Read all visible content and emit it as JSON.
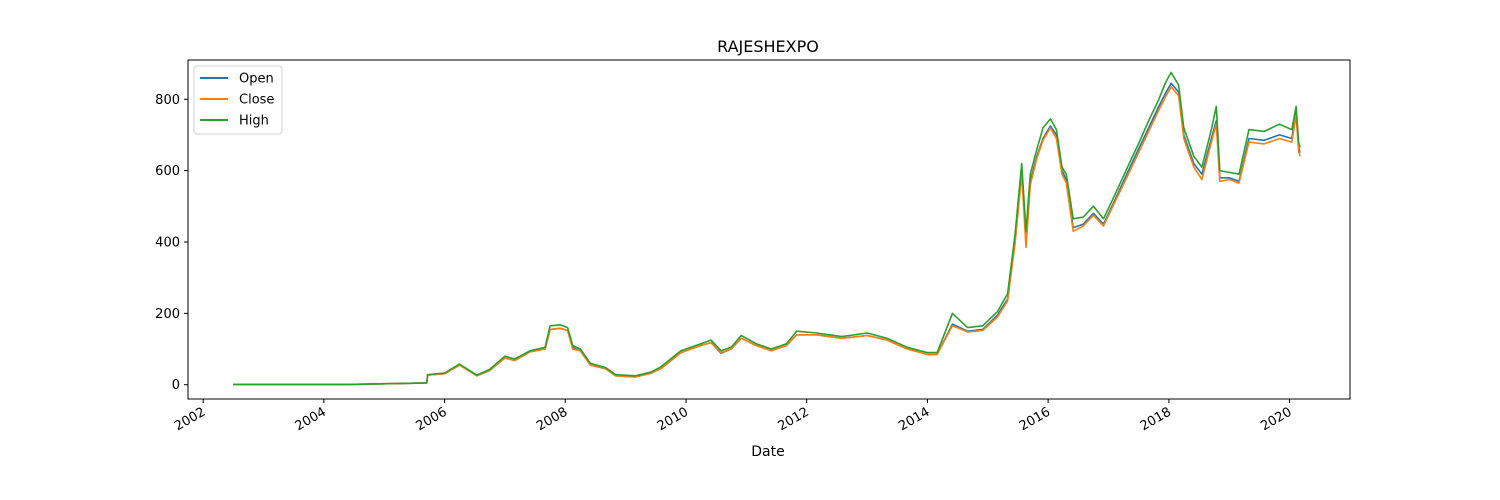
{
  "chart_data": {
    "type": "line",
    "title": "RAJESHEXPO",
    "xlabel": "Date",
    "ylabel": "",
    "x_axis_type": "date",
    "xlim": [
      "2001-10-01",
      "2021-01-01"
    ],
    "ylim": [
      -40,
      910
    ],
    "x_ticks": [
      "2002",
      "2004",
      "2006",
      "2008",
      "2010",
      "2012",
      "2014",
      "2016",
      "2018",
      "2020"
    ],
    "y_ticks": [
      0,
      200,
      400,
      600,
      800
    ],
    "grid": false,
    "legend_position": "top-left",
    "series": [
      {
        "name": "Open",
        "color": "#1f77b4",
        "points": [
          [
            "2002-07-01",
            1
          ],
          [
            "2003-06-01",
            1
          ],
          [
            "2004-06-01",
            1
          ],
          [
            "2005-06-01",
            4
          ],
          [
            "2005-09-15",
            5
          ],
          [
            "2005-09-20",
            27
          ],
          [
            "2006-01-01",
            31
          ],
          [
            "2006-04-01",
            55
          ],
          [
            "2006-06-01",
            38
          ],
          [
            "2006-07-15",
            25
          ],
          [
            "2006-10-01",
            40
          ],
          [
            "2007-01-01",
            75
          ],
          [
            "2007-03-01",
            68
          ],
          [
            "2007-06-01",
            92
          ],
          [
            "2007-09-01",
            100
          ],
          [
            "2007-10-01",
            155
          ],
          [
            "2007-12-01",
            158
          ],
          [
            "2008-01-15",
            152
          ],
          [
            "2008-02-15",
            105
          ],
          [
            "2008-04-01",
            95
          ],
          [
            "2008-06-01",
            55
          ],
          [
            "2008-09-01",
            45
          ],
          [
            "2008-11-01",
            25
          ],
          [
            "2009-03-01",
            22
          ],
          [
            "2009-06-01",
            32
          ],
          [
            "2009-08-01",
            45
          ],
          [
            "2009-12-01",
            90
          ],
          [
            "2010-04-01",
            110
          ],
          [
            "2010-06-01",
            118
          ],
          [
            "2010-08-01",
            88
          ],
          [
            "2010-10-01",
            100
          ],
          [
            "2010-12-01",
            130
          ],
          [
            "2011-03-01",
            110
          ],
          [
            "2011-06-01",
            95
          ],
          [
            "2011-09-01",
            110
          ],
          [
            "2011-11-01",
            140
          ],
          [
            "2012-03-01",
            140
          ],
          [
            "2012-08-01",
            130
          ],
          [
            "2013-01-01",
            138
          ],
          [
            "2013-05-01",
            125
          ],
          [
            "2013-09-01",
            100
          ],
          [
            "2014-01-01",
            85
          ],
          [
            "2014-03-01",
            85
          ],
          [
            "2014-06-01",
            170
          ],
          [
            "2014-09-01",
            150
          ],
          [
            "2014-12-01",
            155
          ],
          [
            "2015-03-01",
            195
          ],
          [
            "2015-05-01",
            240
          ],
          [
            "2015-06-15",
            400
          ],
          [
            "2015-07-25",
            600
          ],
          [
            "2015-08-20",
            420
          ],
          [
            "2015-09-15",
            570
          ],
          [
            "2015-10-25",
            640
          ],
          [
            "2015-12-01",
            690
          ],
          [
            "2016-01-15",
            725
          ],
          [
            "2016-02-20",
            700
          ],
          [
            "2016-03-25",
            600
          ],
          [
            "2016-04-20",
            575
          ],
          [
            "2016-06-01",
            440
          ],
          [
            "2016-08-01",
            450
          ],
          [
            "2016-10-01",
            480
          ],
          [
            "2016-12-01",
            450
          ],
          [
            "2017-02-01",
            510
          ],
          [
            "2017-05-01",
            600
          ],
          [
            "2017-07-01",
            660
          ],
          [
            "2017-09-01",
            720
          ],
          [
            "2017-11-01",
            780
          ],
          [
            "2017-12-15",
            820
          ],
          [
            "2018-01-15",
            845
          ],
          [
            "2018-03-01",
            820
          ],
          [
            "2018-04-01",
            700
          ],
          [
            "2018-06-01",
            620
          ],
          [
            "2018-07-20",
            590
          ],
          [
            "2018-09-15",
            690
          ],
          [
            "2018-10-15",
            740
          ],
          [
            "2018-11-05",
            580
          ],
          [
            "2019-01-01",
            580
          ],
          [
            "2019-03-01",
            570
          ],
          [
            "2019-05-01",
            690
          ],
          [
            "2019-08-01",
            685
          ],
          [
            "2019-11-01",
            700
          ],
          [
            "2020-01-15",
            690
          ],
          [
            "2020-02-10",
            770
          ],
          [
            "2020-02-25",
            665
          ],
          [
            "2020-03-05",
            650
          ]
        ]
      },
      {
        "name": "Close",
        "color": "#ff7f0e",
        "points": [
          [
            "2002-07-01",
            1
          ],
          [
            "2003-06-01",
            1
          ],
          [
            "2004-06-01",
            1
          ],
          [
            "2005-06-01",
            4
          ],
          [
            "2005-09-15",
            5
          ],
          [
            "2005-09-20",
            27
          ],
          [
            "2006-01-01",
            31
          ],
          [
            "2006-04-01",
            55
          ],
          [
            "2006-06-01",
            38
          ],
          [
            "2006-07-15",
            25
          ],
          [
            "2006-10-01",
            40
          ],
          [
            "2007-01-01",
            75
          ],
          [
            "2007-03-01",
            68
          ],
          [
            "2007-06-01",
            92
          ],
          [
            "2007-09-01",
            100
          ],
          [
            "2007-10-01",
            155
          ],
          [
            "2007-12-01",
            158
          ],
          [
            "2008-01-15",
            152
          ],
          [
            "2008-02-15",
            100
          ],
          [
            "2008-04-01",
            95
          ],
          [
            "2008-06-01",
            55
          ],
          [
            "2008-09-01",
            45
          ],
          [
            "2008-11-01",
            25
          ],
          [
            "2009-03-01",
            22
          ],
          [
            "2009-06-01",
            32
          ],
          [
            "2009-08-01",
            45
          ],
          [
            "2009-12-01",
            90
          ],
          [
            "2010-04-01",
            110
          ],
          [
            "2010-06-01",
            118
          ],
          [
            "2010-08-01",
            90
          ],
          [
            "2010-10-01",
            100
          ],
          [
            "2010-12-01",
            130
          ],
          [
            "2011-03-01",
            110
          ],
          [
            "2011-06-01",
            95
          ],
          [
            "2011-09-01",
            110
          ],
          [
            "2011-11-01",
            140
          ],
          [
            "2012-03-01",
            140
          ],
          [
            "2012-08-01",
            130
          ],
          [
            "2013-01-01",
            138
          ],
          [
            "2013-05-01",
            125
          ],
          [
            "2013-09-01",
            100
          ],
          [
            "2014-01-01",
            85
          ],
          [
            "2014-03-01",
            85
          ],
          [
            "2014-06-01",
            165
          ],
          [
            "2014-09-01",
            148
          ],
          [
            "2014-12-01",
            152
          ],
          [
            "2015-03-01",
            190
          ],
          [
            "2015-05-01",
            235
          ],
          [
            "2015-06-15",
            395
          ],
          [
            "2015-07-25",
            590
          ],
          [
            "2015-08-20",
            385
          ],
          [
            "2015-09-15",
            560
          ],
          [
            "2015-10-25",
            635
          ],
          [
            "2015-12-01",
            685
          ],
          [
            "2016-01-15",
            720
          ],
          [
            "2016-02-20",
            690
          ],
          [
            "2016-03-25",
            590
          ],
          [
            "2016-04-20",
            565
          ],
          [
            "2016-06-01",
            430
          ],
          [
            "2016-08-01",
            445
          ],
          [
            "2016-10-01",
            475
          ],
          [
            "2016-12-01",
            445
          ],
          [
            "2017-02-01",
            505
          ],
          [
            "2017-05-01",
            590
          ],
          [
            "2017-07-01",
            650
          ],
          [
            "2017-09-01",
            710
          ],
          [
            "2017-11-01",
            770
          ],
          [
            "2017-12-15",
            810
          ],
          [
            "2018-01-15",
            835
          ],
          [
            "2018-03-01",
            810
          ],
          [
            "2018-04-01",
            690
          ],
          [
            "2018-06-01",
            610
          ],
          [
            "2018-07-20",
            575
          ],
          [
            "2018-09-15",
            680
          ],
          [
            "2018-10-15",
            730
          ],
          [
            "2018-11-05",
            570
          ],
          [
            "2019-01-01",
            575
          ],
          [
            "2019-03-01",
            565
          ],
          [
            "2019-05-01",
            680
          ],
          [
            "2019-08-01",
            675
          ],
          [
            "2019-11-01",
            690
          ],
          [
            "2020-01-15",
            680
          ],
          [
            "2020-02-10",
            755
          ],
          [
            "2020-02-25",
            655
          ],
          [
            "2020-03-05",
            640
          ]
        ]
      },
      {
        "name": "High",
        "color": "#2ca02c",
        "points": [
          [
            "2002-07-01",
            1
          ],
          [
            "2003-06-01",
            1
          ],
          [
            "2004-06-01",
            1
          ],
          [
            "2005-06-01",
            4
          ],
          [
            "2005-09-15",
            5
          ],
          [
            "2005-09-20",
            28
          ],
          [
            "2006-01-01",
            33
          ],
          [
            "2006-04-01",
            58
          ],
          [
            "2006-06-01",
            40
          ],
          [
            "2006-07-15",
            27
          ],
          [
            "2006-10-01",
            43
          ],
          [
            "2007-01-01",
            80
          ],
          [
            "2007-03-01",
            72
          ],
          [
            "2007-06-01",
            95
          ],
          [
            "2007-09-01",
            105
          ],
          [
            "2007-10-01",
            165
          ],
          [
            "2007-12-01",
            168
          ],
          [
            "2008-01-15",
            160
          ],
          [
            "2008-02-15",
            110
          ],
          [
            "2008-04-01",
            100
          ],
          [
            "2008-06-01",
            60
          ],
          [
            "2008-09-01",
            48
          ],
          [
            "2008-11-01",
            28
          ],
          [
            "2009-03-01",
            25
          ],
          [
            "2009-06-01",
            35
          ],
          [
            "2009-08-01",
            50
          ],
          [
            "2009-12-01",
            95
          ],
          [
            "2010-04-01",
            115
          ],
          [
            "2010-06-01",
            125
          ],
          [
            "2010-08-01",
            95
          ],
          [
            "2010-10-01",
            105
          ],
          [
            "2010-12-01",
            138
          ],
          [
            "2011-03-01",
            115
          ],
          [
            "2011-06-01",
            100
          ],
          [
            "2011-09-01",
            115
          ],
          [
            "2011-11-01",
            150
          ],
          [
            "2012-03-01",
            145
          ],
          [
            "2012-08-01",
            135
          ],
          [
            "2013-01-01",
            145
          ],
          [
            "2013-05-01",
            130
          ],
          [
            "2013-09-01",
            105
          ],
          [
            "2014-01-01",
            90
          ],
          [
            "2014-03-01",
            90
          ],
          [
            "2014-06-01",
            200
          ],
          [
            "2014-09-01",
            160
          ],
          [
            "2014-12-01",
            165
          ],
          [
            "2015-03-01",
            205
          ],
          [
            "2015-05-01",
            255
          ],
          [
            "2015-06-15",
            420
          ],
          [
            "2015-07-25",
            620
          ],
          [
            "2015-08-20",
            430
          ],
          [
            "2015-09-15",
            590
          ],
          [
            "2015-10-25",
            660
          ],
          [
            "2015-12-01",
            720
          ],
          [
            "2016-01-15",
            745
          ],
          [
            "2016-02-20",
            715
          ],
          [
            "2016-03-25",
            610
          ],
          [
            "2016-04-20",
            590
          ],
          [
            "2016-06-01",
            465
          ],
          [
            "2016-08-01",
            470
          ],
          [
            "2016-10-01",
            500
          ],
          [
            "2016-12-01",
            465
          ],
          [
            "2017-02-01",
            525
          ],
          [
            "2017-05-01",
            615
          ],
          [
            "2017-07-01",
            675
          ],
          [
            "2017-09-01",
            740
          ],
          [
            "2017-11-01",
            800
          ],
          [
            "2017-12-15",
            850
          ],
          [
            "2018-01-15",
            875
          ],
          [
            "2018-03-01",
            840
          ],
          [
            "2018-04-01",
            720
          ],
          [
            "2018-06-01",
            640
          ],
          [
            "2018-07-20",
            610
          ],
          [
            "2018-09-15",
            715
          ],
          [
            "2018-10-15",
            780
          ],
          [
            "2018-11-05",
            600
          ],
          [
            "2019-01-01",
            595
          ],
          [
            "2019-03-01",
            590
          ],
          [
            "2019-05-01",
            715
          ],
          [
            "2019-08-01",
            710
          ],
          [
            "2019-11-01",
            730
          ],
          [
            "2020-01-15",
            715
          ],
          [
            "2020-02-10",
            780
          ],
          [
            "2020-02-25",
            680
          ],
          [
            "2020-03-05",
            665
          ]
        ]
      }
    ]
  }
}
